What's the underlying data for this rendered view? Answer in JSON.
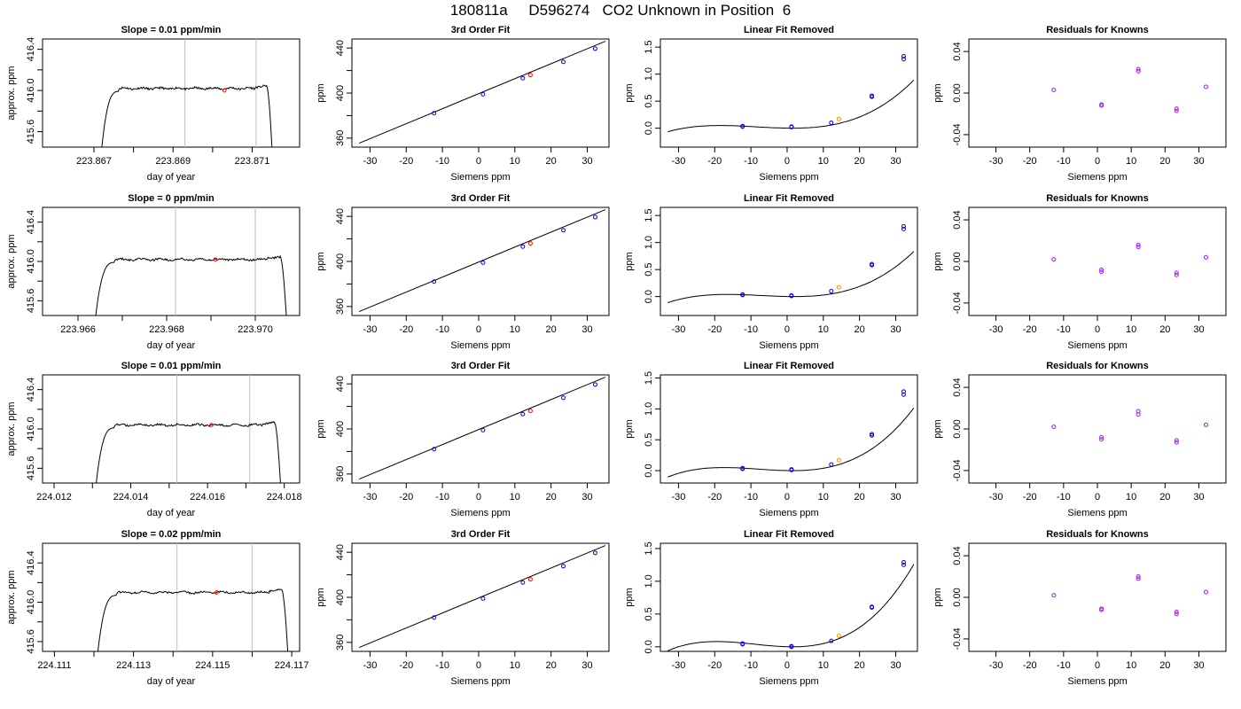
{
  "page": {
    "title": "180811a     D596274   CO2 Unknown in Position  6"
  },
  "styles": {
    "trace_color": "#000000",
    "unknown_color": "#ff0000",
    "known_color": "#0000ff",
    "resid_color": "#a020f0",
    "unknown_lin_color": "#ff8c00",
    "vline_color": "#bebebe"
  },
  "chart_data": [
    {
      "type": "line",
      "panel": "trace",
      "row": 0,
      "title": "Slope =  0.01  ppm/min",
      "xlabel": "day of year",
      "ylabel": "approx. ppm",
      "xlim": [
        223.8657,
        223.8722
      ],
      "ylim": [
        415.45,
        416.5
      ],
      "xticks": [
        223.867,
        223.868,
        223.869,
        223.87,
        223.871
      ],
      "xtick_labels": [
        "223.867",
        "",
        "223.869",
        "",
        "223.871"
      ],
      "yticks": [
        415.6,
        415.8,
        416.0,
        416.2,
        416.4
      ],
      "ytick_labels": [
        "415.6",
        "",
        "416.0",
        "",
        "416.4"
      ],
      "vlines": [
        223.8693,
        223.8711
      ],
      "trace": {
        "start": 223.8672,
        "end": 223.8715,
        "level": 416.02,
        "noise": 0.012,
        "rise_from": 415.45,
        "drop_to": 415.45
      },
      "unknown_point": {
        "x": 223.8703,
        "y": 416.0
      }
    },
    {
      "type": "scatter",
      "panel": "fit",
      "row": 0,
      "title": "3rd Order Fit",
      "xlabel": "Siemens ppm",
      "ylabel": "ppm",
      "xlim": [
        -35,
        36
      ],
      "ylim": [
        352,
        448
      ],
      "xticks": [
        -30,
        -20,
        -10,
        0,
        10,
        20,
        30
      ],
      "yticks": [
        360,
        380,
        400,
        420,
        440
      ],
      "ytick_labels": [
        "360",
        "",
        "400",
        "",
        "440"
      ],
      "curve": {
        "x_start": -33,
        "x_end": 35,
        "y_start": 355.5,
        "y_end": 446.0
      },
      "knowns": [
        {
          "x": -12.3,
          "y": 382.1
        },
        {
          "x": 1.2,
          "y": 398.9
        },
        {
          "x": 12.2,
          "y": 413.2
        },
        {
          "x": 23.4,
          "y": 427.7
        },
        {
          "x": 32.2,
          "y": 439.4
        }
      ],
      "unknown": {
        "x": 14.3,
        "y": 416.0
      }
    },
    {
      "type": "scatter",
      "panel": "linear-removed",
      "row": 0,
      "title": "Linear Fit Removed",
      "xlabel": "Siemens ppm",
      "ylabel": "ppm",
      "xlim": [
        -35,
        36
      ],
      "ylim": [
        -0.35,
        1.65
      ],
      "xticks": [
        -30,
        -20,
        -10,
        0,
        10,
        20,
        30
      ],
      "yticks": [
        0.0,
        0.5,
        1.0,
        1.5
      ],
      "ytick_labels": [
        "0.0",
        "0.5",
        "1.0",
        "1.5"
      ],
      "curve": {
        "x_start": -33,
        "x_end": 35,
        "local_max_x": -18.5,
        "local_max_y": 0.05,
        "local_min_x": 1.5,
        "local_min_y": 0.0,
        "y_end": 1.6
      },
      "knowns": [
        {
          "x": -12.3,
          "y": 0.03
        },
        {
          "x": -12.3,
          "y": 0.04
        },
        {
          "x": 1.2,
          "y": 0.02
        },
        {
          "x": 1.2,
          "y": 0.03
        },
        {
          "x": 12.2,
          "y": 0.1
        },
        {
          "x": 23.4,
          "y": 0.58
        },
        {
          "x": 23.4,
          "y": 0.6
        },
        {
          "x": 32.2,
          "y": 1.28
        },
        {
          "x": 32.2,
          "y": 1.33
        }
      ],
      "unknown": {
        "x": 14.3,
        "y": 0.17
      }
    },
    {
      "type": "scatter",
      "panel": "residuals",
      "row": 0,
      "title": "Residuals for Knowns",
      "xlabel": "Siemens ppm",
      "ylabel": "ppm",
      "xlim": [
        -38,
        38
      ],
      "ylim": [
        -0.052,
        0.052
      ],
      "xticks": [
        -30,
        -20,
        -10,
        0,
        10,
        20,
        30
      ],
      "yticks": [
        -0.04,
        0.0,
        0.04
      ],
      "ytick_labels": [
        "-0.04",
        "0.00",
        "0.04"
      ],
      "points": [
        {
          "x": -12.9,
          "y": 0.003
        },
        {
          "x": 1.2,
          "y": -0.012
        },
        {
          "x": 1.2,
          "y": -0.011
        },
        {
          "x": 12.1,
          "y": 0.023
        },
        {
          "x": 12.1,
          "y": 0.021
        },
        {
          "x": 23.4,
          "y": -0.015
        },
        {
          "x": 23.4,
          "y": -0.017
        },
        {
          "x": 32.1,
          "y": 0.006
        }
      ]
    },
    {
      "type": "line",
      "panel": "trace",
      "row": 1,
      "title": "Slope =  0  ppm/min",
      "xlabel": "day of year",
      "ylabel": "approx. ppm",
      "xlim": [
        223.9652,
        223.971
      ],
      "ylim": [
        415.45,
        416.55
      ],
      "xticks": [
        223.966,
        223.967,
        223.968,
        223.969,
        223.97
      ],
      "xtick_labels": [
        "223.966",
        "",
        "223.968",
        "",
        "223.970"
      ],
      "yticks": [
        415.6,
        415.8,
        416.0,
        416.2,
        416.4
      ],
      "ytick_labels": [
        "415.6",
        "",
        "416.0",
        "",
        "416.4"
      ],
      "vlines": [
        223.9682,
        223.97
      ],
      "trace": {
        "start": 223.9664,
        "end": 223.9707,
        "level": 416.02,
        "noise": 0.012,
        "rise_from": 415.45,
        "drop_to": 415.45
      },
      "unknown_point": {
        "x": 223.9691,
        "y": 416.02
      }
    },
    {
      "type": "scatter",
      "panel": "fit",
      "row": 1,
      "title": "3rd Order Fit",
      "xlabel": "Siemens ppm",
      "ylabel": "ppm",
      "xlim": [
        -35,
        36
      ],
      "ylim": [
        352,
        448
      ],
      "xticks": [
        -30,
        -20,
        -10,
        0,
        10,
        20,
        30
      ],
      "yticks": [
        360,
        380,
        400,
        420,
        440
      ],
      "ytick_labels": [
        "360",
        "",
        "400",
        "",
        "440"
      ],
      "curve": {
        "x_start": -33,
        "x_end": 35,
        "y_start": 355.5,
        "y_end": 446.0
      },
      "knowns": [
        {
          "x": -12.3,
          "y": 382.1
        },
        {
          "x": 1.2,
          "y": 398.9
        },
        {
          "x": 12.2,
          "y": 413.2
        },
        {
          "x": 23.4,
          "y": 427.7
        },
        {
          "x": 32.2,
          "y": 439.4
        }
      ],
      "unknown": {
        "x": 14.3,
        "y": 416.0
      }
    },
    {
      "type": "scatter",
      "panel": "linear-removed",
      "row": 1,
      "title": "Linear Fit Removed",
      "xlabel": "Siemens ppm",
      "ylabel": "ppm",
      "xlim": [
        -35,
        36
      ],
      "ylim": [
        -0.35,
        1.65
      ],
      "xticks": [
        -30,
        -20,
        -10,
        0,
        10,
        20,
        30
      ],
      "yticks": [
        0.0,
        0.5,
        1.0,
        1.5
      ],
      "ytick_labels": [
        "0.0",
        "0.5",
        "1.0",
        "1.5"
      ],
      "curve": {
        "x_start": -33,
        "x_end": 35,
        "local_max_x": -16.5,
        "local_max_y": 0.04,
        "local_min_x": 2.0,
        "local_min_y": 0.0,
        "y_end": 1.6
      },
      "knowns": [
        {
          "x": -12.3,
          "y": 0.03
        },
        {
          "x": -12.3,
          "y": 0.04
        },
        {
          "x": 1.2,
          "y": 0.01
        },
        {
          "x": 1.2,
          "y": 0.02
        },
        {
          "x": 12.2,
          "y": 0.1
        },
        {
          "x": 23.4,
          "y": 0.58
        },
        {
          "x": 23.4,
          "y": 0.6
        },
        {
          "x": 32.2,
          "y": 1.25
        },
        {
          "x": 32.2,
          "y": 1.3
        }
      ],
      "unknown": {
        "x": 14.3,
        "y": 0.17
      }
    },
    {
      "type": "scatter",
      "panel": "residuals",
      "row": 1,
      "title": "Residuals for Knowns",
      "xlabel": "Siemens ppm",
      "ylabel": "ppm",
      "xlim": [
        -38,
        38
      ],
      "ylim": [
        -0.052,
        0.052
      ],
      "xticks": [
        -30,
        -20,
        -10,
        0,
        10,
        20,
        30
      ],
      "yticks": [
        -0.04,
        0.0,
        0.04
      ],
      "ytick_labels": [
        "-0.04",
        "0.00",
        "0.04"
      ],
      "points": [
        {
          "x": -12.9,
          "y": 0.002
        },
        {
          "x": 1.2,
          "y": -0.008
        },
        {
          "x": 1.2,
          "y": -0.01
        },
        {
          "x": 12.1,
          "y": 0.016
        },
        {
          "x": 12.1,
          "y": 0.014
        },
        {
          "x": 23.4,
          "y": -0.011
        },
        {
          "x": 23.4,
          "y": -0.013
        },
        {
          "x": 32.1,
          "y": 0.004
        }
      ]
    },
    {
      "type": "line",
      "panel": "trace",
      "row": 2,
      "title": "Slope =  0.01  ppm/min",
      "xlabel": "day of year",
      "ylabel": "approx. ppm",
      "xlim": [
        224.0117,
        224.0184
      ],
      "ylim": [
        415.45,
        416.55
      ],
      "xticks": [
        224.012,
        224.013,
        224.014,
        224.015,
        224.016,
        224.017,
        224.018
      ],
      "xtick_labels": [
        "224.012",
        "",
        "224.014",
        "",
        "224.016",
        "",
        "224.018"
      ],
      "yticks": [
        415.6,
        415.8,
        416.0,
        416.2,
        416.4
      ],
      "ytick_labels": [
        "415.6",
        "",
        "416.0",
        "",
        "416.4"
      ],
      "vlines": [
        224.0152,
        224.0171
      ],
      "trace": {
        "start": 224.0131,
        "end": 224.0179,
        "level": 416.04,
        "noise": 0.012,
        "rise_from": 415.45,
        "drop_to": 415.45
      },
      "unknown_point": {
        "x": 224.0161,
        "y": 416.04
      }
    },
    {
      "type": "scatter",
      "panel": "fit",
      "row": 2,
      "title": "3rd Order Fit",
      "xlabel": "Siemens ppm",
      "ylabel": "ppm",
      "xlim": [
        -35,
        36
      ],
      "ylim": [
        352,
        448
      ],
      "xticks": [
        -30,
        -20,
        -10,
        0,
        10,
        20,
        30
      ],
      "yticks": [
        360,
        380,
        400,
        420,
        440
      ],
      "ytick_labels": [
        "360",
        "",
        "400",
        "",
        "440"
      ],
      "curve": {
        "x_start": -33,
        "x_end": 35,
        "y_start": 355.5,
        "y_end": 446.0
      },
      "knowns": [
        {
          "x": -12.3,
          "y": 382.1
        },
        {
          "x": 1.2,
          "y": 398.9
        },
        {
          "x": 12.2,
          "y": 413.2
        },
        {
          "x": 23.4,
          "y": 427.7
        },
        {
          "x": 32.2,
          "y": 439.4
        }
      ],
      "unknown": {
        "x": 14.3,
        "y": 416.0
      }
    },
    {
      "type": "scatter",
      "panel": "linear-removed",
      "row": 2,
      "title": "Linear Fit Removed",
      "xlabel": "Siemens ppm",
      "ylabel": "ppm",
      "xlim": [
        -35,
        36
      ],
      "ylim": [
        -0.2,
        1.55
      ],
      "xticks": [
        -30,
        -20,
        -10,
        0,
        10,
        20,
        30
      ],
      "yticks": [
        0.0,
        0.5,
        1.0,
        1.5
      ],
      "ytick_labels": [
        "0.0",
        "0.5",
        "1.0",
        "1.5"
      ],
      "curve": {
        "x_start": -33,
        "x_end": 35,
        "local_max_x": -17.5,
        "local_max_y": 0.05,
        "local_min_x": 1.5,
        "local_min_y": 0.0,
        "y_end": 1.52
      },
      "knowns": [
        {
          "x": -12.3,
          "y": 0.03
        },
        {
          "x": -12.3,
          "y": 0.04
        },
        {
          "x": 1.2,
          "y": 0.01
        },
        {
          "x": 1.2,
          "y": 0.02
        },
        {
          "x": 12.2,
          "y": 0.1
        },
        {
          "x": 23.4,
          "y": 0.57
        },
        {
          "x": 23.4,
          "y": 0.59
        },
        {
          "x": 32.2,
          "y": 1.23
        },
        {
          "x": 32.2,
          "y": 1.28
        }
      ],
      "unknown": {
        "x": 14.3,
        "y": 0.17
      }
    },
    {
      "type": "scatter",
      "panel": "residuals",
      "row": 2,
      "title": "Residuals for Knowns",
      "xlabel": "Siemens ppm",
      "ylabel": "ppm",
      "xlim": [
        -38,
        38
      ],
      "ylim": [
        -0.052,
        0.052
      ],
      "xticks": [
        -30,
        -20,
        -10,
        0,
        10,
        20,
        30
      ],
      "yticks": [
        -0.04,
        0.0,
        0.04
      ],
      "ytick_labels": [
        "-0.04",
        "0.00",
        "0.04"
      ],
      "points": [
        {
          "x": -12.9,
          "y": 0.002
        },
        {
          "x": 1.2,
          "y": -0.008
        },
        {
          "x": 1.2,
          "y": -0.01
        },
        {
          "x": 12.1,
          "y": 0.017
        },
        {
          "x": 12.1,
          "y": 0.014
        },
        {
          "x": 23.4,
          "y": -0.011
        },
        {
          "x": 23.4,
          "y": -0.013
        },
        {
          "x": 32.1,
          "y": 0.004
        }
      ]
    },
    {
      "type": "line",
      "panel": "trace",
      "row": 3,
      "title": "Slope =  0.02  ppm/min",
      "xlabel": "day of year",
      "ylabel": "approx. ppm",
      "xlim": [
        224.1107,
        224.1172
      ],
      "ylim": [
        415.5,
        416.6
      ],
      "xticks": [
        224.111,
        224.112,
        224.113,
        224.114,
        224.115,
        224.116,
        224.117
      ],
      "xtick_labels": [
        "224.111",
        "",
        "224.113",
        "",
        "224.115",
        "",
        "224.117"
      ],
      "yticks": [
        415.6,
        415.8,
        416.0,
        416.2,
        416.4
      ],
      "ytick_labels": [
        "415.6",
        "",
        "416.0",
        "",
        "416.4"
      ],
      "vlines": [
        224.1141,
        224.116
      ],
      "trace": {
        "start": 224.1121,
        "end": 224.1169,
        "level": 416.1,
        "noise": 0.012,
        "rise_from": 415.5,
        "drop_to": 415.5
      },
      "unknown_point": {
        "x": 224.1151,
        "y": 416.1
      }
    },
    {
      "type": "scatter",
      "panel": "fit",
      "row": 3,
      "title": "3rd Order Fit",
      "xlabel": "Siemens ppm",
      "ylabel": "ppm",
      "xlim": [
        -35,
        36
      ],
      "ylim": [
        352,
        448
      ],
      "xticks": [
        -30,
        -20,
        -10,
        0,
        10,
        20,
        30
      ],
      "yticks": [
        360,
        380,
        400,
        420,
        440
      ],
      "ytick_labels": [
        "360",
        "",
        "400",
        "",
        "440"
      ],
      "curve": {
        "x_start": -33,
        "x_end": 35,
        "y_start": 355.5,
        "y_end": 446.0
      },
      "knowns": [
        {
          "x": -12.3,
          "y": 382.1
        },
        {
          "x": 1.2,
          "y": 398.9
        },
        {
          "x": 12.2,
          "y": 413.2
        },
        {
          "x": 23.4,
          "y": 427.7
        },
        {
          "x": 32.2,
          "y": 439.4
        }
      ],
      "unknown": {
        "x": 14.3,
        "y": 416.0
      }
    },
    {
      "type": "scatter",
      "panel": "linear-removed",
      "row": 3,
      "title": "Linear Fit Removed",
      "xlabel": "Siemens ppm",
      "ylabel": "ppm",
      "xlim": [
        -35,
        36
      ],
      "ylim": [
        -0.07,
        1.58
      ],
      "xticks": [
        -30,
        -20,
        -10,
        0,
        10,
        20,
        30
      ],
      "yticks": [
        0.0,
        0.5,
        1.0,
        1.5
      ],
      "ytick_labels": [
        "0.0",
        "0.5",
        "1.0",
        "1.5"
      ],
      "curve": {
        "x_start": -33,
        "x_end": 35,
        "local_max_x": -19.5,
        "local_max_y": 0.08,
        "local_min_x": 1.5,
        "local_min_y": 0.0,
        "y_end": 1.55
      },
      "knowns": [
        {
          "x": -12.3,
          "y": 0.04
        },
        {
          "x": -12.3,
          "y": 0.05
        },
        {
          "x": 1.2,
          "y": 0.0
        },
        {
          "x": 1.2,
          "y": 0.01
        },
        {
          "x": 12.2,
          "y": 0.09
        },
        {
          "x": 23.4,
          "y": 0.6
        },
        {
          "x": 23.4,
          "y": 0.61
        },
        {
          "x": 32.2,
          "y": 1.25
        },
        {
          "x": 32.2,
          "y": 1.29
        }
      ],
      "unknown": {
        "x": 14.3,
        "y": 0.17
      }
    },
    {
      "type": "scatter",
      "panel": "residuals",
      "row": 3,
      "title": "Residuals for Knowns",
      "xlabel": "Siemens ppm",
      "ylabel": "ppm",
      "xlim": [
        -38,
        38
      ],
      "ylim": [
        -0.052,
        0.052
      ],
      "xticks": [
        -30,
        -20,
        -10,
        0,
        10,
        20,
        30
      ],
      "yticks": [
        -0.04,
        0.0,
        0.04
      ],
      "ytick_labels": [
        "-0.04",
        "0.00",
        "0.04"
      ],
      "points": [
        {
          "x": -12.9,
          "y": 0.002
        },
        {
          "x": 1.2,
          "y": -0.011
        },
        {
          "x": 1.2,
          "y": -0.012
        },
        {
          "x": 12.1,
          "y": 0.02
        },
        {
          "x": 12.1,
          "y": 0.018
        },
        {
          "x": 23.4,
          "y": -0.014
        },
        {
          "x": 23.4,
          "y": -0.016
        },
        {
          "x": 32.1,
          "y": 0.005
        }
      ]
    }
  ]
}
